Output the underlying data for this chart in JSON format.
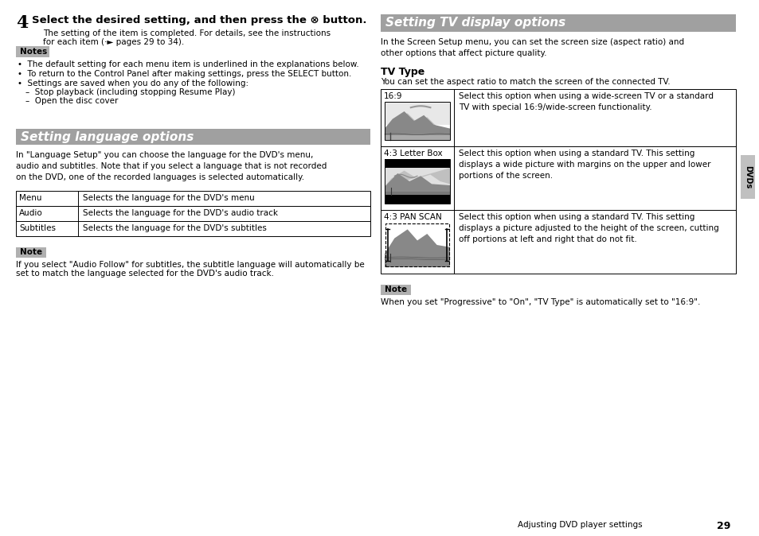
{
  "bg_color": "#ffffff",
  "step4_num": "4",
  "step4_title": "Select the desired setting, and then press the ⊗ button.",
  "step4_body1": "The setting of the item is completed. For details, see the instructions",
  "step4_body2": "for each item (·► pages 29 to 34).",
  "notes_label": "Notes",
  "notes_bg": "#b0b0b0",
  "notes_items": [
    "The default setting for each menu item is underlined in the explanations below.",
    "To return to the Control Panel after making settings, press the SELECT button.",
    "Settings are saved when you do any of the following:",
    "–  Stop playback (including stopping Resume Play)",
    "–  Open the disc cover"
  ],
  "section1_title": "Setting language options",
  "section1_bg": "#a0a0a0",
  "section1_text_color": "#ffffff",
  "section1_body": "In \"Language Setup\" you can choose the language for the DVD's menu,\naudio and subtitles. Note that if you select a language that is not recorded\non the DVD, one of the recorded languages is selected automatically.",
  "lang_table_rows": [
    [
      "Menu",
      "Selects the language for the DVD's menu"
    ],
    [
      "Audio",
      "Selects the language for the DVD's audio track"
    ],
    [
      "Subtitles",
      "Selects the language for the DVD's subtitles"
    ]
  ],
  "note1_label": "Note",
  "note1_bg": "#b0b0b0",
  "note1_body1": "If you select \"Audio Follow\" for subtitles, the subtitle language will automatically be",
  "note1_body2": "set to match the language selected for the DVD's audio track.",
  "section2_title": "Setting TV display options",
  "section2_bg": "#a0a0a0",
  "section2_text_color": "#ffffff",
  "section2_body": "In the Screen Setup menu, you can set the screen size (aspect ratio) and\nother options that affect picture quality.",
  "tv_type_heading": "TV Type",
  "tv_type_body": "You can set the aspect ratio to match the screen of the connected TV.",
  "tv_table_rows": [
    [
      "16:9",
      "Select this option when using a wide-screen TV or a standard\nTV with special 16:9/wide-screen functionality."
    ],
    [
      "4:3 Letter Box",
      "Select this option when using a standard TV. This setting\ndisplays a wide picture with margins on the upper and lower\nportions of the screen."
    ],
    [
      "4:3 PAN SCAN",
      "Select this option when using a standard TV. This setting\ndisplays a picture adjusted to the height of the screen, cutting\noff portions at left and right that do not fit."
    ]
  ],
  "note2_label": "Note",
  "note2_bg": "#b0b0b0",
  "note2_body": "When you set \"Progressive\" to \"On\", \"TV Type\" is automatically set to \"16:9\".",
  "dvds_tab_text": "DVDs",
  "dvds_tab_bg": "#c0c0c0",
  "footer_text": "Adjusting DVD player settings",
  "footer_page": "29"
}
